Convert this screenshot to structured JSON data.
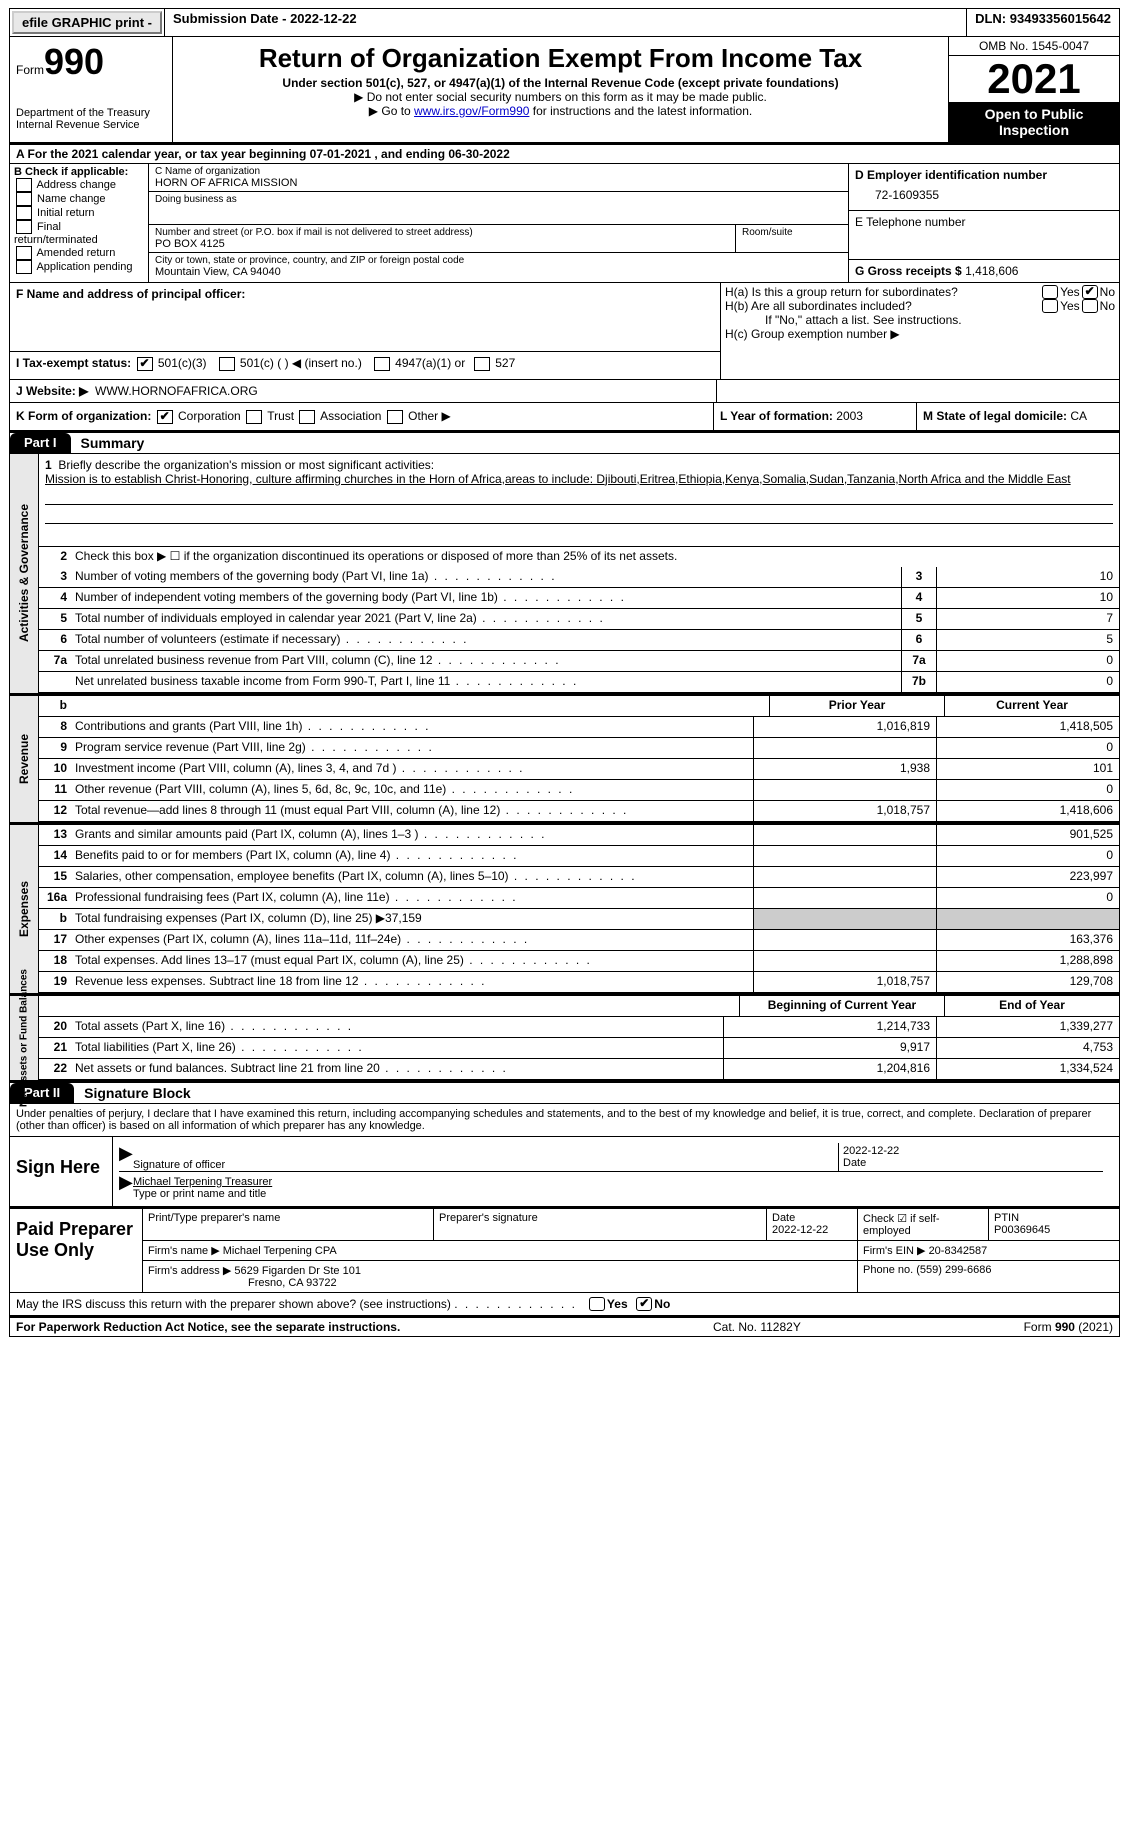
{
  "topbar": {
    "efile": "efile GRAPHIC print -",
    "subdate_label": "Submission Date -",
    "subdate": "2022-12-22",
    "dln_label": "DLN:",
    "dln": "93493356015642"
  },
  "header": {
    "form_word": "Form",
    "form_num": "990",
    "dept": "Department of the Treasury",
    "irs": "Internal Revenue Service",
    "title": "Return of Organization Exempt From Income Tax",
    "sub1": "Under section 501(c), 527, or 4947(a)(1) of the Internal Revenue Code (except private foundations)",
    "sub2": "▶ Do not enter social security numbers on this form as it may be made public.",
    "sub3_pre": "▶ Go to ",
    "sub3_link": "www.irs.gov/Form990",
    "sub3_post": " for instructions and the latest information.",
    "omb": "OMB No. 1545-0047",
    "year": "2021",
    "open": "Open to Public Inspection"
  },
  "rowA": "A   For the 2021 calendar year, or tax year beginning 07-01-2021     , and ending 06-30-2022",
  "colB": {
    "label": "B Check if applicable:",
    "opts": [
      "Address change",
      "Name change",
      "Initial return",
      "Final return/terminated",
      "Amended return",
      "Application pending"
    ]
  },
  "colC": {
    "name_lbl": "C Name of organization",
    "name": "HORN OF AFRICA MISSION",
    "dba_lbl": "Doing business as",
    "addr_lbl": "Number and street (or P.O. box if mail is not delivered to street address)",
    "room_lbl": "Room/suite",
    "addr": "PO BOX 4125",
    "city_lbl": "City or town, state or province, country, and ZIP or foreign postal code",
    "city": "Mountain View, CA   94040"
  },
  "colD": {
    "ein_lbl": "D Employer identification number",
    "ein": "72-1609355",
    "tel_lbl": "E Telephone number",
    "gross_lbl": "G Gross receipts $",
    "gross": "1,418,606"
  },
  "rowF": {
    "label": "F  Name and address of principal officer:"
  },
  "rowH": {
    "a": "H(a)  Is this a group return for subordinates?",
    "b": "H(b)  Are all subordinates included?",
    "note": "If \"No,\" attach a list. See instructions.",
    "c": "H(c)  Group exemption number ▶",
    "yes": "Yes",
    "no": "No"
  },
  "rowI": {
    "label": "I    Tax-exempt status:",
    "o1": "501(c)(3)",
    "o2": "501(c) (  ) ◀ (insert no.)",
    "o3": "4947(a)(1) or",
    "o4": "527"
  },
  "rowJ": {
    "label": "J   Website: ▶",
    "val": "WWW.HORNOFAFRICA.ORG"
  },
  "rowK": {
    "label": "K Form of organization:",
    "corp": "Corporation",
    "trust": "Trust",
    "assoc": "Association",
    "other": "Other ▶",
    "l_lbl": "L Year of formation:",
    "l_val": "2003",
    "m_lbl": "M State of legal domicile:",
    "m_val": "CA"
  },
  "part1": {
    "tab": "Part I",
    "title": "Summary",
    "vtab1": "Activities & Governance",
    "vtab2": "Revenue",
    "vtab3": "Expenses",
    "vtab4": "Net Assets or Fund Balances",
    "q1": "Briefly describe the organization's mission or most significant activities:",
    "mission": "Mission is to establish Christ-Honoring, culture affirming churches in the Horn of Africa,areas to include: Djibouti,Eritrea,Ethiopia,Kenya,Somalia,Sudan,Tanzania,North Africa and the Middle East",
    "q2": "Check this box ▶ ☐  if the organization discontinued its operations or disposed of more than 25% of its net assets.",
    "rows_ag": [
      {
        "n": "3",
        "d": "Number of voting members of the governing body (Part VI, line 1a)",
        "box": "3",
        "v": "10"
      },
      {
        "n": "4",
        "d": "Number of independent voting members of the governing body (Part VI, line 1b)",
        "box": "4",
        "v": "10"
      },
      {
        "n": "5",
        "d": "Total number of individuals employed in calendar year 2021 (Part V, line 2a)",
        "box": "5",
        "v": "7"
      },
      {
        "n": "6",
        "d": "Total number of volunteers (estimate if necessary)",
        "box": "6",
        "v": "5"
      },
      {
        "n": "7a",
        "d": "Total unrelated business revenue from Part VIII, column (C), line 12",
        "box": "7a",
        "v": "0"
      },
      {
        "n": "",
        "d": "Net unrelated business taxable income from Form 990-T, Part I, line 11",
        "box": "7b",
        "v": "0"
      }
    ],
    "col_hdr1": "Prior Year",
    "col_hdr2": "Current Year",
    "rows_rev": [
      {
        "n": "8",
        "d": "Contributions and grants (Part VIII, line 1h)",
        "p": "1,016,819",
        "c": "1,418,505"
      },
      {
        "n": "9",
        "d": "Program service revenue (Part VIII, line 2g)",
        "p": "",
        "c": "0"
      },
      {
        "n": "10",
        "d": "Investment income (Part VIII, column (A), lines 3, 4, and 7d )",
        "p": "1,938",
        "c": "101"
      },
      {
        "n": "11",
        "d": "Other revenue (Part VIII, column (A), lines 5, 6d, 8c, 9c, 10c, and 11e)",
        "p": "",
        "c": "0"
      },
      {
        "n": "12",
        "d": "Total revenue—add lines 8 through 11 (must equal Part VIII, column (A), line 12)",
        "p": "1,018,757",
        "c": "1,418,606"
      }
    ],
    "rows_exp": [
      {
        "n": "13",
        "d": "Grants and similar amounts paid (Part IX, column (A), lines 1–3 )",
        "p": "",
        "c": "901,525"
      },
      {
        "n": "14",
        "d": "Benefits paid to or for members (Part IX, column (A), line 4)",
        "p": "",
        "c": "0"
      },
      {
        "n": "15",
        "d": "Salaries, other compensation, employee benefits (Part IX, column (A), lines 5–10)",
        "p": "",
        "c": "223,997"
      },
      {
        "n": "16a",
        "d": "Professional fundraising fees (Part IX, column (A), line 11e)",
        "p": "",
        "c": "0"
      },
      {
        "n": "b",
        "d": "Total fundraising expenses (Part IX, column (D), line 25) ▶37,159",
        "grey": true,
        "p": "",
        "c": ""
      },
      {
        "n": "17",
        "d": "Other expenses (Part IX, column (A), lines 11a–11d, 11f–24e)",
        "p": "",
        "c": "163,376"
      },
      {
        "n": "18",
        "d": "Total expenses. Add lines 13–17 (must equal Part IX, column (A), line 25)",
        "p": "",
        "c": "1,288,898"
      },
      {
        "n": "19",
        "d": "Revenue less expenses. Subtract line 18 from line 12",
        "p": "1,018,757",
        "c": "129,708"
      }
    ],
    "col_hdr3": "Beginning of Current Year",
    "col_hdr4": "End of Year",
    "rows_net": [
      {
        "n": "20",
        "d": "Total assets (Part X, line 16)",
        "p": "1,214,733",
        "c": "1,339,277"
      },
      {
        "n": "21",
        "d": "Total liabilities (Part X, line 26)",
        "p": "9,917",
        "c": "4,753"
      },
      {
        "n": "22",
        "d": "Net assets or fund balances. Subtract line 21 from line 20",
        "p": "1,204,816",
        "c": "1,334,524"
      }
    ]
  },
  "part2": {
    "tab": "Part II",
    "title": "Signature Block",
    "penalty": "Under penalties of perjury, I declare that I have examined this return, including accompanying schedules and statements, and to the best of my knowledge and belief, it is true, correct, and complete. Declaration of preparer (other than officer) is based on all information of which preparer has any knowledge.",
    "sign_here": "Sign Here",
    "sig_off": "Signature of officer",
    "date": "Date",
    "date_val": "2022-12-22",
    "typed": "Michael Terpening  Treasurer",
    "typed_lbl": "Type or print name and title",
    "paid": "Paid Preparer Use Only",
    "p_name_lbl": "Print/Type preparer's name",
    "p_sig_lbl": "Preparer's signature",
    "p_date_lbl": "Date",
    "p_date": "2022-12-22",
    "p_check_lbl": "Check ☑ if self-employed",
    "p_ptin_lbl": "PTIN",
    "p_ptin": "P00369645",
    "firm_name_lbl": "Firm's name      ▶",
    "firm_name": "Michael Terpening CPA",
    "firm_ein_lbl": "Firm's EIN ▶",
    "firm_ein": "20-8342587",
    "firm_addr_lbl": "Firm's address ▶",
    "firm_addr1": "5629 Figarden Dr Ste 101",
    "firm_addr2": "Fresno, CA  93722",
    "phone_lbl": "Phone no.",
    "phone": "(559) 299-6686",
    "discuss": "May the IRS discuss this return with the preparer shown above? (see instructions)",
    "d_yes": "Yes",
    "d_no": "No"
  },
  "footer": {
    "l": "For Paperwork Reduction Act Notice, see the separate instructions.",
    "m": "Cat. No. 11282Y",
    "r": "Form 990 (2021)"
  }
}
